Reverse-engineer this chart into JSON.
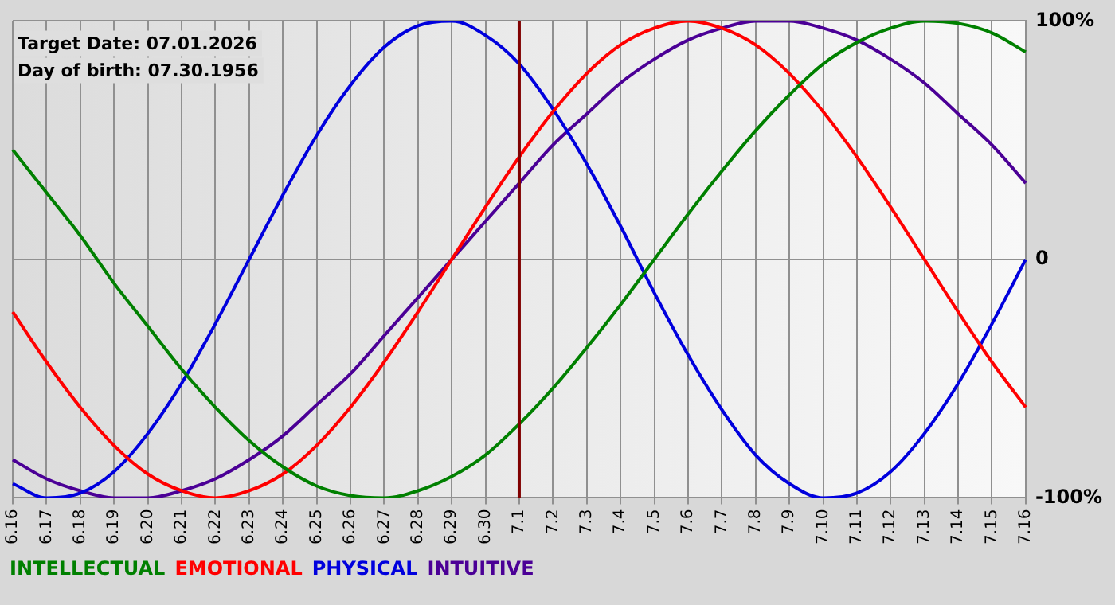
{
  "chart_data": {
    "type": "line",
    "categories": [
      "6.16",
      "6.17",
      "6.18",
      "6.19",
      "6.20",
      "6.21",
      "6.22",
      "6.23",
      "6.24",
      "6.25",
      "6.26",
      "6.27",
      "6.28",
      "6.29",
      "6.30",
      "7.1",
      "7.2",
      "7.3",
      "7.4",
      "7.5",
      "7.6",
      "7.7",
      "7.8",
      "7.9",
      "7.10",
      "7.11",
      "7.12",
      "7.13",
      "7.14",
      "7.15",
      "7.16"
    ],
    "series": [
      {
        "name": "INTELLECTUAL",
        "color": "#008000",
        "values": [
          46,
          28,
          10,
          -10,
          -28,
          -46,
          -62,
          -76,
          -87,
          -95,
          -99,
          -100,
          -97,
          -91,
          -82,
          -69,
          -54,
          -37,
          -19,
          0,
          19,
          37,
          54,
          69,
          82,
          91,
          97,
          100,
          99,
          95,
          87
        ]
      },
      {
        "name": "EMOTIONAL",
        "color": "#ff0000",
        "values": [
          -22,
          -43,
          -62,
          -78,
          -90,
          -97,
          -100,
          -97,
          -90,
          -78,
          -62,
          -43,
          -22,
          0,
          22,
          43,
          62,
          78,
          90,
          97,
          100,
          97,
          90,
          78,
          62,
          43,
          22,
          0,
          -22,
          -43,
          -62
        ]
      },
      {
        "name": "PHYSICAL",
        "color": "#0000dd",
        "values": [
          -94,
          -100,
          -98,
          -89,
          -73,
          -52,
          -27,
          0,
          27,
          52,
          73,
          89,
          98,
          100,
          94,
          82,
          63,
          40,
          14,
          -14,
          -40,
          -63,
          -82,
          -94,
          -100,
          -98,
          -89,
          -73,
          -52,
          -27,
          0
        ]
      },
      {
        "name": "INTUITIVE",
        "color": "#4b0096",
        "values": [
          -84,
          -92,
          -97,
          -100,
          -100,
          -97,
          -92,
          -84,
          -74,
          -61,
          -48,
          -32,
          -16,
          0,
          16,
          32,
          48,
          61,
          74,
          84,
          92,
          97,
          100,
          100,
          97,
          92,
          84,
          74,
          61,
          48,
          32
        ]
      }
    ],
    "ylim": [
      -100,
      100
    ],
    "yticks": [
      {
        "value": -100,
        "label": "-100%"
      },
      0,
      {
        "value": 100,
        "label": "100%"
      }
    ],
    "grid": true,
    "legend": "bottom",
    "marker": "none",
    "line_style": "solid",
    "ref_lines": [
      {
        "axis": "x",
        "value": "7.1",
        "color": "#800000"
      }
    ],
    "annotations": [
      "Target Date: 07.01.2026",
      "Day of birth: 07.30.1956"
    ]
  }
}
